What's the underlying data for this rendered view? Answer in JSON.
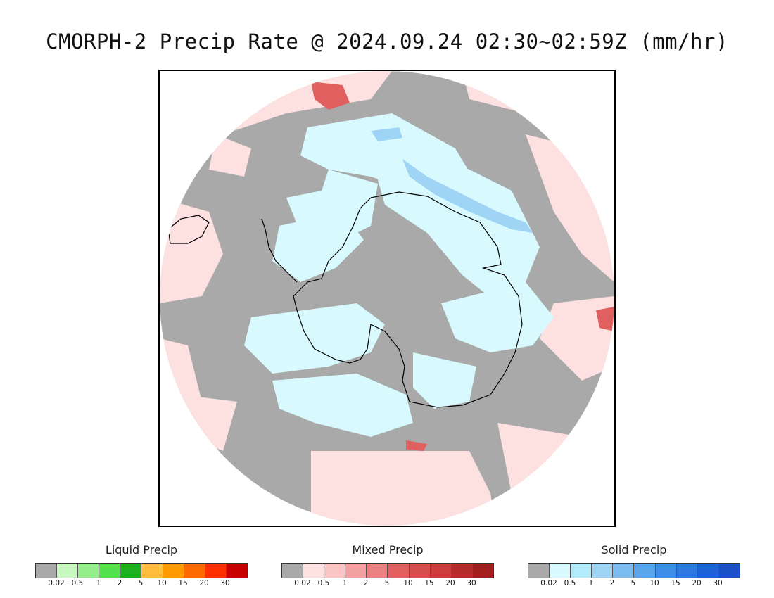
{
  "title": "CMORPH-2 Precip Rate @ 2024.09.24 02:30~02:59Z (mm/hr)",
  "map": {
    "projection": "south-polar-stereographic",
    "colors": {
      "no_data_gray": "#a9a9a9",
      "mixed_light": "#fde1e1",
      "mixed_medium": "#f2a0a0",
      "mixed_heavy": "#e06060",
      "solid_light": "#d8faff",
      "solid_medium": "#9fd4f5",
      "solid_heavy": "#6ab0ea",
      "coastline": "#000000"
    }
  },
  "legends": [
    {
      "title": "Liquid Precip",
      "colors": [
        "#a9a9a9",
        "#c8f7c0",
        "#94ef8a",
        "#54e150",
        "#1fb01f",
        "#ffbf3c",
        "#ff9a00",
        "#ff6a00",
        "#ff3000",
        "#c80000"
      ],
      "ticks": [
        "0.02",
        "0.5",
        "1",
        "2",
        "5",
        "10",
        "15",
        "20",
        "30"
      ]
    },
    {
      "title": "Mixed Precip",
      "colors": [
        "#a9a9a9",
        "#fde1e1",
        "#fbc4c4",
        "#f2a0a0",
        "#eb8080",
        "#e06060",
        "#d84d4d",
        "#cc3c3c",
        "#b52a2a",
        "#a01e1e"
      ],
      "ticks": [
        "0.02",
        "0.5",
        "1",
        "2",
        "5",
        "10",
        "15",
        "20",
        "30"
      ]
    },
    {
      "title": "Solid Precip",
      "colors": [
        "#a9a9a9",
        "#d8faff",
        "#b2ecfa",
        "#9fd4f5",
        "#7cbcf0",
        "#5aa4ec",
        "#3e8ee8",
        "#2f78e0",
        "#1f62d8",
        "#1a4fc8"
      ],
      "ticks": [
        "0.02",
        "0.5",
        "1",
        "2",
        "5",
        "10",
        "15",
        "20",
        "30"
      ]
    }
  ]
}
